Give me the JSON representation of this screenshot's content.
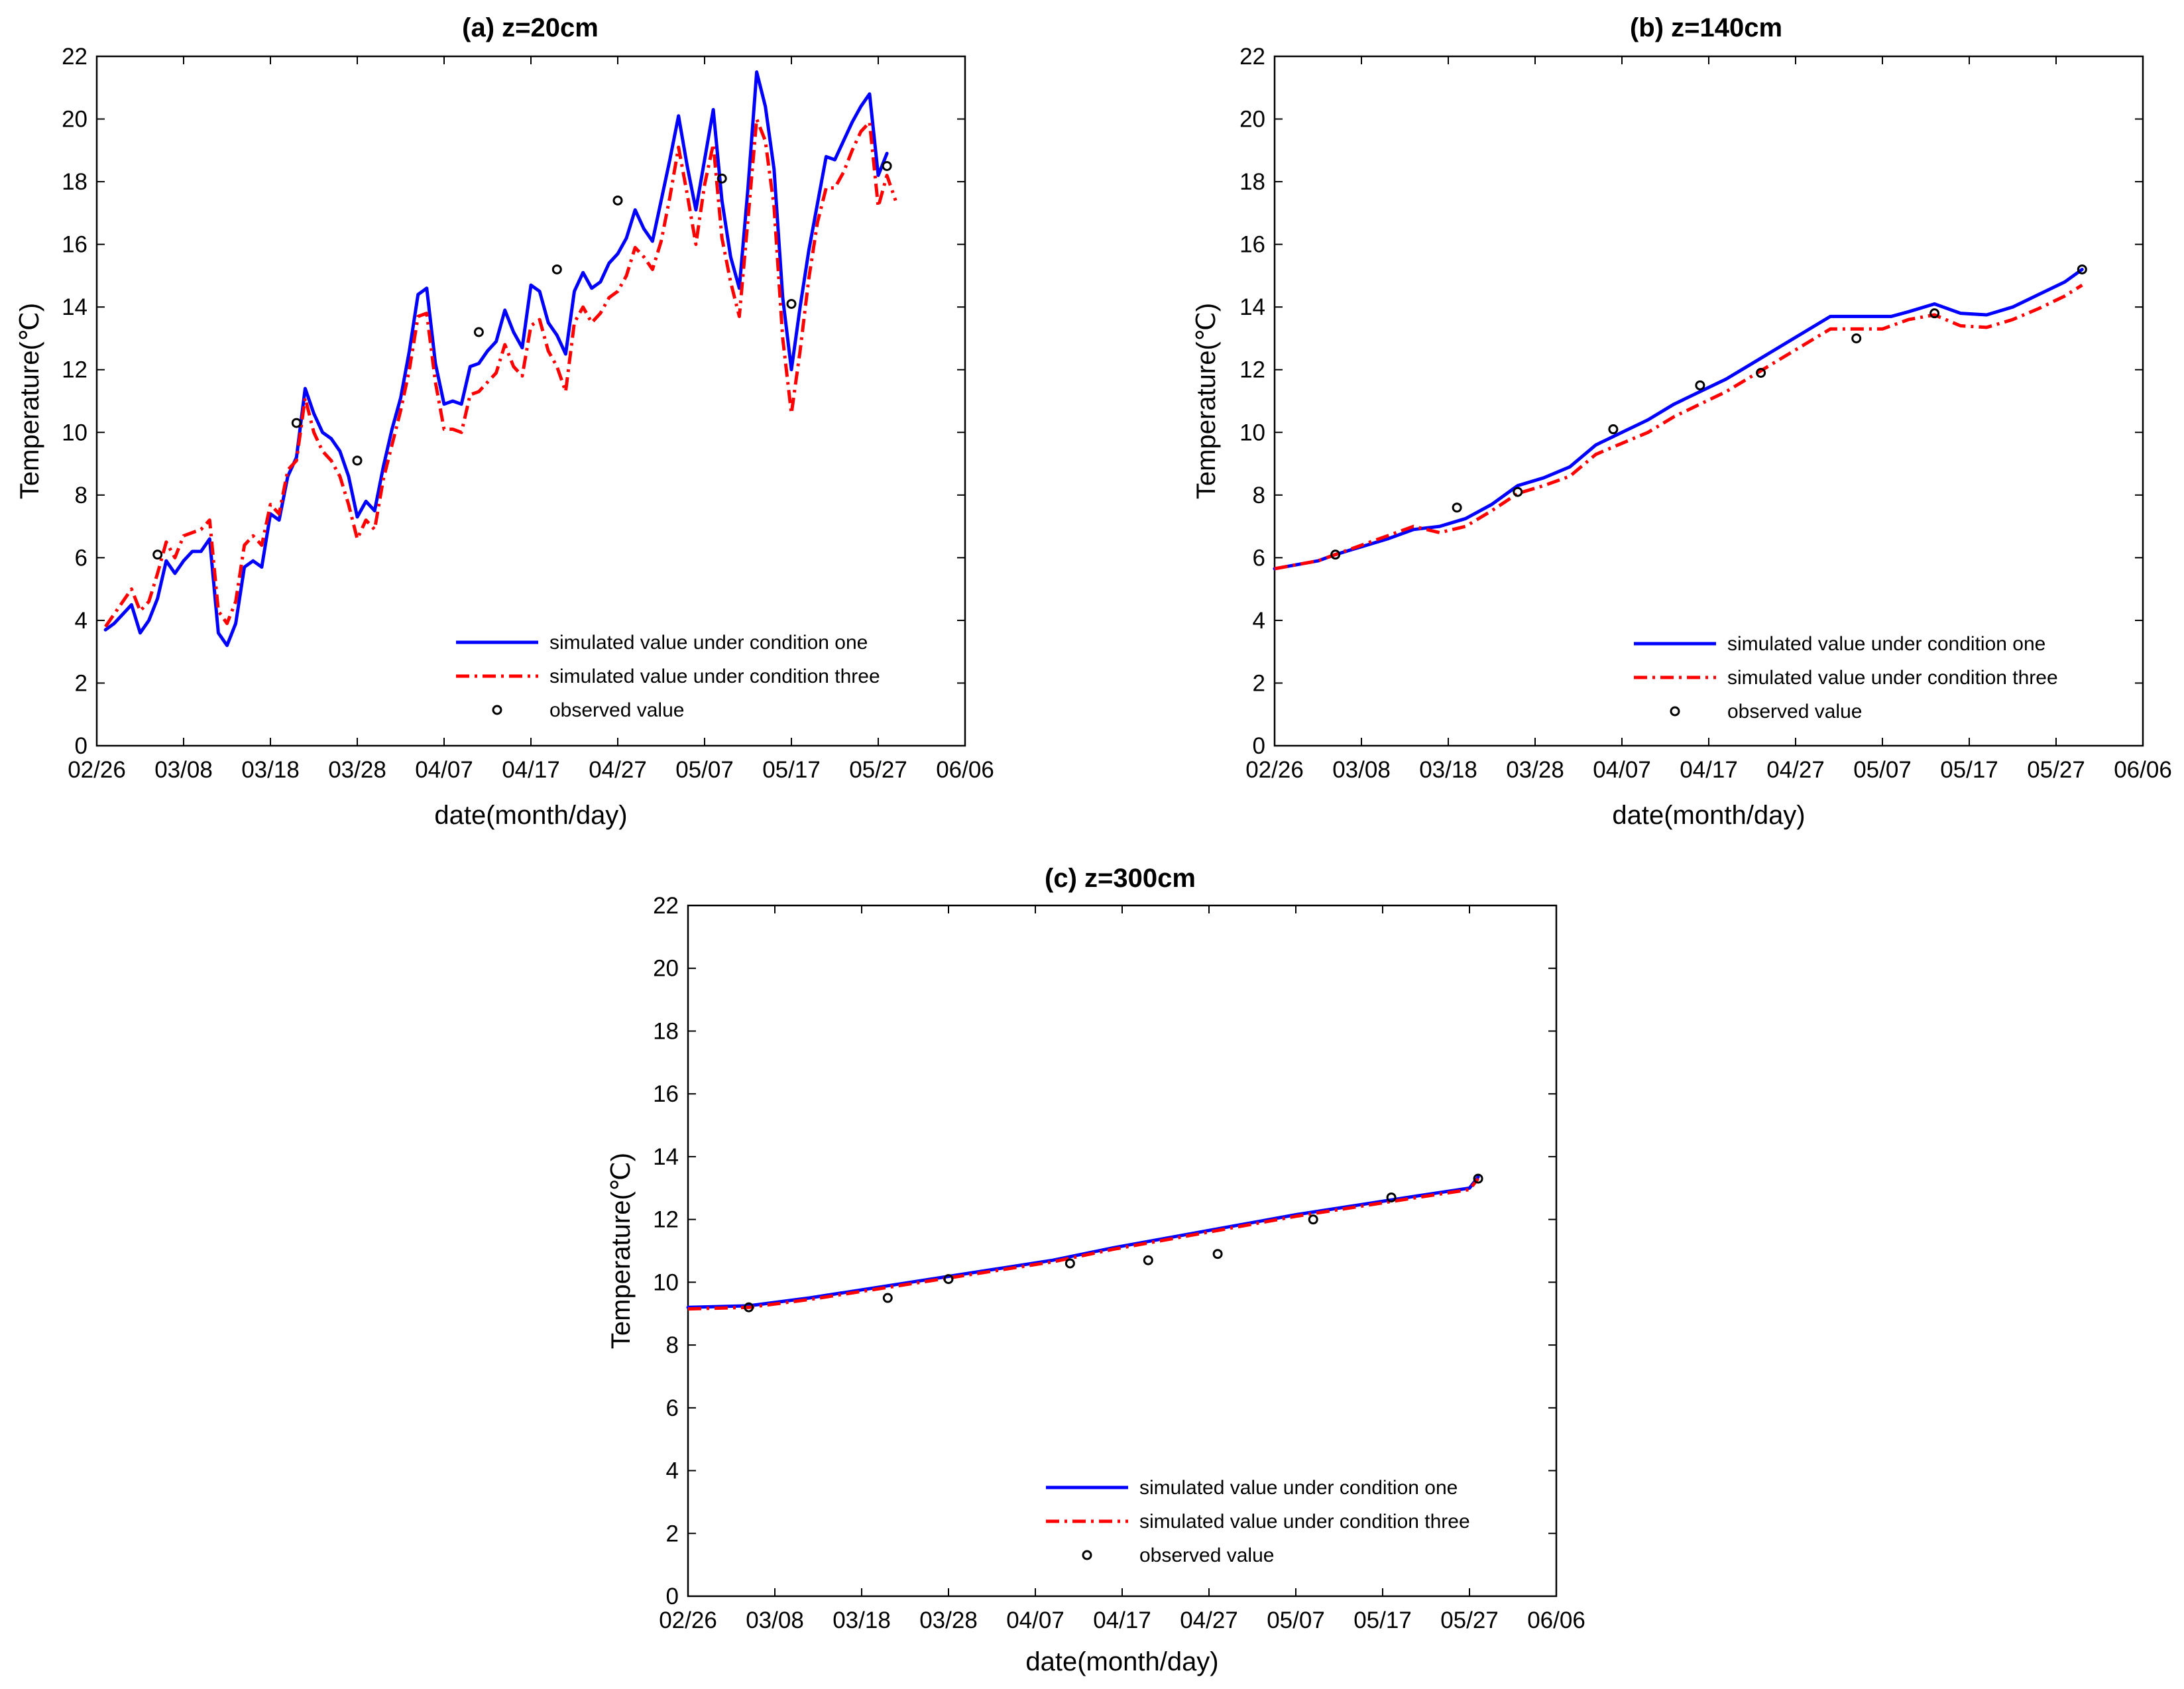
{
  "chart_data": [
    {
      "type": "line",
      "title": "(a) z=20cm",
      "xlabel": "date(month/day)",
      "ylabel": "Temperature(℃)",
      "x_ticks": [
        "02/26",
        "03/08",
        "03/18",
        "03/28",
        "04/07",
        "04/17",
        "04/27",
        "05/07",
        "05/17",
        "05/27",
        "06/06"
      ],
      "x_unit": "days since 02/26",
      "xlim": [
        0,
        100
      ],
      "ylim": [
        0,
        22
      ],
      "y_ticks": [
        0,
        2,
        4,
        6,
        8,
        10,
        12,
        14,
        16,
        18,
        20,
        22
      ],
      "legend_position": "bottom-right",
      "series": [
        {
          "name": "simulated value under condition one",
          "style": "solid",
          "color": "#0000ff",
          "x": [
            1,
            2,
            3,
            4,
            5,
            6,
            7,
            8,
            9,
            10,
            11,
            12,
            13,
            14,
            15,
            16,
            17,
            18,
            19,
            20,
            21,
            22,
            23,
            24,
            25,
            26,
            27,
            28,
            29,
            30,
            31,
            32,
            33,
            34,
            35,
            36,
            37,
            38,
            39,
            40,
            41,
            42,
            43,
            44,
            45,
            46,
            47,
            48,
            49,
            50,
            51,
            52,
            53,
            54,
            55,
            56,
            57,
            58,
            59,
            60,
            61,
            62,
            63,
            64,
            65,
            66,
            67,
            68,
            69,
            70,
            71,
            72,
            73,
            74,
            75,
            76,
            77,
            78,
            79,
            80,
            81,
            82,
            83,
            84,
            85,
            86,
            87,
            88,
            89,
            90,
            91
          ],
          "values": [
            3.7,
            3.9,
            4.2,
            4.5,
            3.6,
            4.0,
            4.7,
            5.9,
            5.5,
            5.9,
            6.2,
            6.2,
            6.6,
            3.6,
            3.2,
            3.9,
            5.7,
            5.9,
            5.7,
            7.4,
            7.2,
            8.6,
            9.2,
            11.4,
            10.6,
            10.0,
            9.8,
            9.4,
            8.6,
            7.3,
            7.8,
            7.5,
            8.9,
            10.1,
            11.1,
            12.6,
            14.4,
            14.6,
            12.2,
            10.9,
            11.0,
            10.9,
            12.1,
            12.2,
            12.6,
            12.9,
            13.9,
            13.2,
            12.7,
            14.7,
            14.5,
            13.5,
            13.1,
            12.5,
            14.5,
            15.1,
            14.6,
            14.8,
            15.4,
            15.7,
            16.2,
            17.1,
            16.5,
            16.1,
            17.4,
            18.7,
            20.1,
            18.5,
            17.1,
            18.7,
            20.3,
            17.4,
            15.6,
            14.6,
            17.8,
            21.5,
            20.4,
            18.4,
            14.3,
            12.0,
            14.0,
            15.8,
            17.3,
            18.8,
            18.7,
            19.3,
            19.9,
            20.4,
            20.8,
            18.2,
            18.9
          ]
        },
        {
          "name": "simulated value under condition three",
          "style": "dashdot",
          "color": "#ff0000",
          "x": [
            1,
            2,
            3,
            4,
            5,
            6,
            7,
            8,
            9,
            10,
            11,
            12,
            13,
            14,
            15,
            16,
            17,
            18,
            19,
            20,
            21,
            22,
            23,
            24,
            25,
            26,
            27,
            28,
            29,
            30,
            31,
            32,
            33,
            34,
            35,
            36,
            37,
            38,
            39,
            40,
            41,
            42,
            43,
            44,
            45,
            46,
            47,
            48,
            49,
            50,
            51,
            52,
            53,
            54,
            55,
            56,
            57,
            58,
            59,
            60,
            61,
            62,
            63,
            64,
            65,
            66,
            67,
            68,
            69,
            70,
            71,
            72,
            73,
            74,
            75,
            76,
            77,
            78,
            79,
            80,
            81,
            82,
            83,
            84,
            85,
            86,
            87,
            88,
            89,
            90,
            91,
            92
          ],
          "values": [
            3.8,
            4.2,
            4.6,
            5.0,
            4.3,
            4.6,
            5.5,
            6.5,
            6.0,
            6.7,
            6.8,
            6.9,
            7.2,
            4.3,
            3.9,
            4.6,
            6.4,
            6.7,
            6.4,
            7.7,
            7.4,
            8.8,
            9.1,
            11.1,
            10.0,
            9.4,
            9.1,
            8.6,
            7.7,
            6.6,
            7.2,
            6.9,
            8.5,
            9.6,
            10.7,
            12.0,
            13.7,
            13.8,
            11.6,
            10.1,
            10.1,
            10.0,
            11.2,
            11.3,
            11.6,
            11.9,
            12.8,
            12.1,
            11.8,
            13.4,
            13.6,
            12.6,
            12.1,
            11.3,
            13.5,
            14.0,
            13.5,
            13.8,
            14.3,
            14.5,
            15.0,
            15.9,
            15.6,
            15.2,
            16.1,
            17.5,
            19.1,
            17.6,
            16.0,
            17.9,
            19.2,
            16.2,
            14.8,
            13.7,
            16.8,
            20.0,
            19.3,
            17.2,
            13.0,
            10.6,
            12.6,
            14.9,
            16.7,
            17.8,
            17.8,
            18.3,
            19.0,
            19.6,
            19.9,
            17.2,
            18.2,
            17.4
          ]
        },
        {
          "name": "observed value",
          "style": "marker",
          "color": "#000000",
          "x": [
            7,
            23,
            30,
            44,
            53,
            60,
            72,
            80,
            91
          ],
          "values": [
            6.1,
            10.3,
            9.1,
            13.2,
            15.2,
            17.4,
            18.1,
            14.1,
            18.5
          ]
        }
      ]
    },
    {
      "type": "line",
      "title": "(b) z=140cm",
      "xlabel": "date(month/day)",
      "ylabel": "Temperature(℃)",
      "x_ticks": [
        "02/26",
        "03/08",
        "03/18",
        "03/28",
        "04/07",
        "04/17",
        "04/27",
        "05/07",
        "05/17",
        "05/27",
        "06/06"
      ],
      "x_unit": "days since 02/26",
      "xlim": [
        0,
        100
      ],
      "ylim": [
        0,
        22
      ],
      "y_ticks": [
        0,
        2,
        4,
        6,
        8,
        10,
        12,
        14,
        16,
        18,
        20,
        22
      ],
      "legend_position": "bottom-right",
      "series": [
        {
          "name": "simulated value under condition one",
          "style": "solid",
          "color": "#0000ff",
          "x": [
            0,
            2,
            5,
            7,
            10,
            13,
            16,
            19,
            22,
            25,
            28,
            31,
            34,
            37,
            40,
            43,
            46,
            49,
            52,
            55,
            58,
            61,
            64,
            67,
            70,
            71,
            73,
            76,
            79,
            82,
            85,
            88,
            91,
            93
          ],
          "values": [
            5.65,
            5.75,
            5.9,
            6.1,
            6.35,
            6.6,
            6.9,
            7.0,
            7.25,
            7.7,
            8.3,
            8.55,
            8.9,
            9.6,
            10.0,
            10.4,
            10.9,
            11.3,
            11.7,
            12.2,
            12.7,
            13.2,
            13.7,
            13.7,
            13.7,
            13.7,
            13.85,
            14.1,
            13.8,
            13.75,
            14.0,
            14.4,
            14.8,
            15.2
          ]
        },
        {
          "name": "simulated value under condition three",
          "style": "dashdot",
          "color": "#ff0000",
          "x": [
            0,
            2,
            5,
            7,
            10,
            13,
            16,
            19,
            22,
            25,
            28,
            31,
            34,
            37,
            40,
            43,
            46,
            49,
            52,
            55,
            58,
            61,
            64,
            67,
            70,
            73,
            76,
            79,
            82,
            85,
            88,
            91,
            93
          ],
          "values": [
            5.65,
            5.75,
            5.9,
            6.1,
            6.4,
            6.7,
            7.0,
            6.8,
            7.0,
            7.5,
            8.05,
            8.3,
            8.6,
            9.3,
            9.65,
            10.0,
            10.5,
            10.9,
            11.3,
            11.8,
            12.3,
            12.8,
            13.3,
            13.3,
            13.3,
            13.6,
            13.75,
            13.4,
            13.35,
            13.6,
            13.95,
            14.35,
            14.7
          ]
        },
        {
          "name": "observed value",
          "style": "marker",
          "color": "#000000",
          "x": [
            7,
            21,
            28,
            39,
            49,
            56,
            67,
            76,
            93
          ],
          "values": [
            6.1,
            7.6,
            8.1,
            10.1,
            11.5,
            11.9,
            13.0,
            13.8,
            15.2
          ]
        }
      ]
    },
    {
      "type": "line",
      "title": "(c) z=300cm",
      "xlabel": "date(month/day)",
      "ylabel": "Temperature(℃)",
      "x_ticks": [
        "02/26",
        "03/08",
        "03/18",
        "03/28",
        "04/07",
        "04/17",
        "04/27",
        "05/07",
        "05/17",
        "05/27",
        "06/06"
      ],
      "x_unit": "days since 02/26",
      "xlim": [
        0,
        100
      ],
      "ylim": [
        0,
        22
      ],
      "y_ticks": [
        0,
        2,
        4,
        6,
        8,
        10,
        12,
        14,
        16,
        18,
        20,
        22
      ],
      "legend_position": "bottom-right",
      "series": [
        {
          "name": "simulated value under condition one",
          "style": "solid",
          "color": "#0000ff",
          "x": [
            0,
            7,
            14,
            21,
            28,
            35,
            42,
            49,
            56,
            63,
            70,
            77,
            84,
            90,
            91
          ],
          "values": [
            9.2,
            9.25,
            9.5,
            9.8,
            10.1,
            10.4,
            10.7,
            11.1,
            11.45,
            11.8,
            12.15,
            12.45,
            12.75,
            13.0,
            13.35
          ]
        },
        {
          "name": "simulated value under condition three",
          "style": "dashdot",
          "color": "#ff0000",
          "x": [
            0,
            7,
            14,
            21,
            28,
            35,
            42,
            49,
            56,
            63,
            70,
            77,
            84,
            90,
            91
          ],
          "values": [
            9.15,
            9.2,
            9.45,
            9.75,
            10.05,
            10.35,
            10.65,
            11.05,
            11.4,
            11.75,
            12.1,
            12.4,
            12.7,
            12.95,
            13.3
          ]
        },
        {
          "name": "observed value",
          "style": "marker",
          "color": "#000000",
          "x": [
            7,
            23,
            30,
            44,
            53,
            61,
            72,
            81,
            91
          ],
          "values": [
            9.2,
            9.5,
            10.1,
            10.6,
            10.7,
            10.9,
            12.0,
            12.7,
            13.3
          ]
        }
      ]
    }
  ]
}
